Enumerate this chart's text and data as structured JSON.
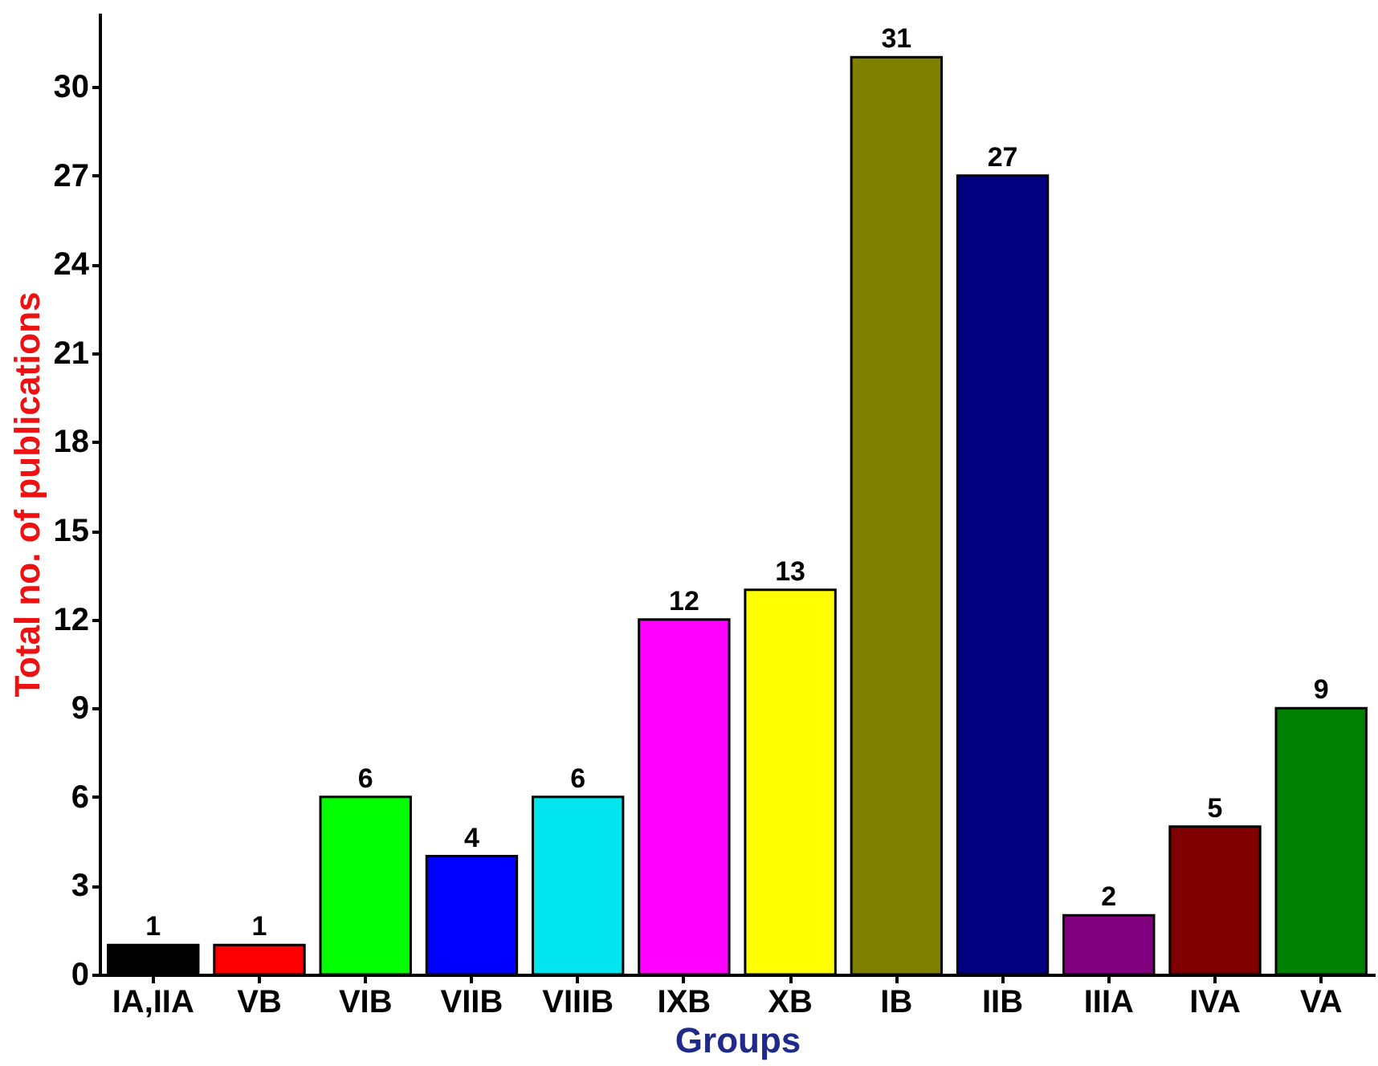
{
  "chart_data": {
    "type": "bar",
    "xlabel": "Groups",
    "ylabel": "Total no. of publications",
    "categories": [
      "IA,IIA",
      "VB",
      "VIB",
      "VIIB",
      "VIIIB",
      "IXB",
      "XB",
      "IB",
      "IIB",
      "IIIA",
      "IVA",
      "VA"
    ],
    "values": [
      1,
      1,
      6,
      4,
      6,
      12,
      13,
      31,
      27,
      2,
      5,
      9
    ],
    "colors": [
      "#000000",
      "#ff0000",
      "#00ff00",
      "#0000ff",
      "#00e5ee",
      "#ff00ff",
      "#ffff00",
      "#808000",
      "#000080",
      "#800080",
      "#800000",
      "#008000"
    ],
    "ylim": [
      0,
      32.5
    ],
    "yticks": [
      0,
      3,
      6,
      9,
      12,
      15,
      18,
      21,
      24,
      27,
      30
    ],
    "data_labels": true,
    "grid": false
  }
}
